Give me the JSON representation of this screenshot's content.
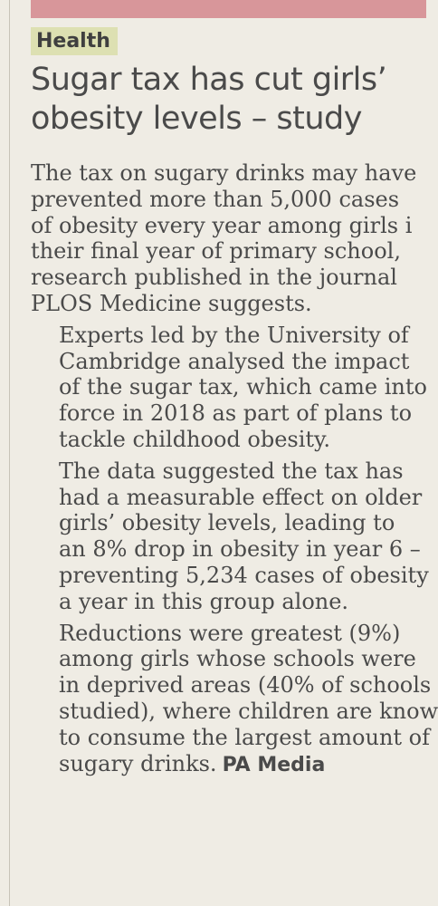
{
  "article": {
    "section_label": "Health",
    "headline": "Sugar tax has cut girls’ obesity levels – study",
    "headline_lines": [
      "Sugar tax has cut girls’",
      "obesity levels – study"
    ],
    "paragraphs": [
      {
        "lines": [
          "The tax on sugary drinks may have",
          "prevented more than 5,000 cases",
          "of obesity every year among girls i",
          "their final year of primary school,",
          "research published in the journal",
          "PLOS Medicine suggests."
        ]
      },
      {
        "lines": [
          "Experts led by the University of",
          "Cambridge analysed the impact",
          "of the sugar tax, which came into",
          "force in 2018 as part of plans to",
          "tackle childhood obesity."
        ]
      },
      {
        "lines": [
          "The data suggested the tax has",
          "had a measurable effect on older",
          "girls’ obesity levels, leading to",
          "an 8% drop in obesity in year 6 –",
          "preventing 5,234 cases of obesity",
          "a year in this group alone."
        ]
      },
      {
        "lines": [
          "Reductions were greatest (9%)",
          "among girls whose schools were",
          "in deprived areas (40% of schools",
          "studied), where children are know",
          "to consume the largest amount of",
          "sugary drinks."
        ]
      }
    ],
    "credit": "PA Media"
  },
  "colors": {
    "top_band": "#d8969a",
    "kicker_highlight": "#dde0b2",
    "paper": "#efece4",
    "text": "#4a4a4a"
  }
}
